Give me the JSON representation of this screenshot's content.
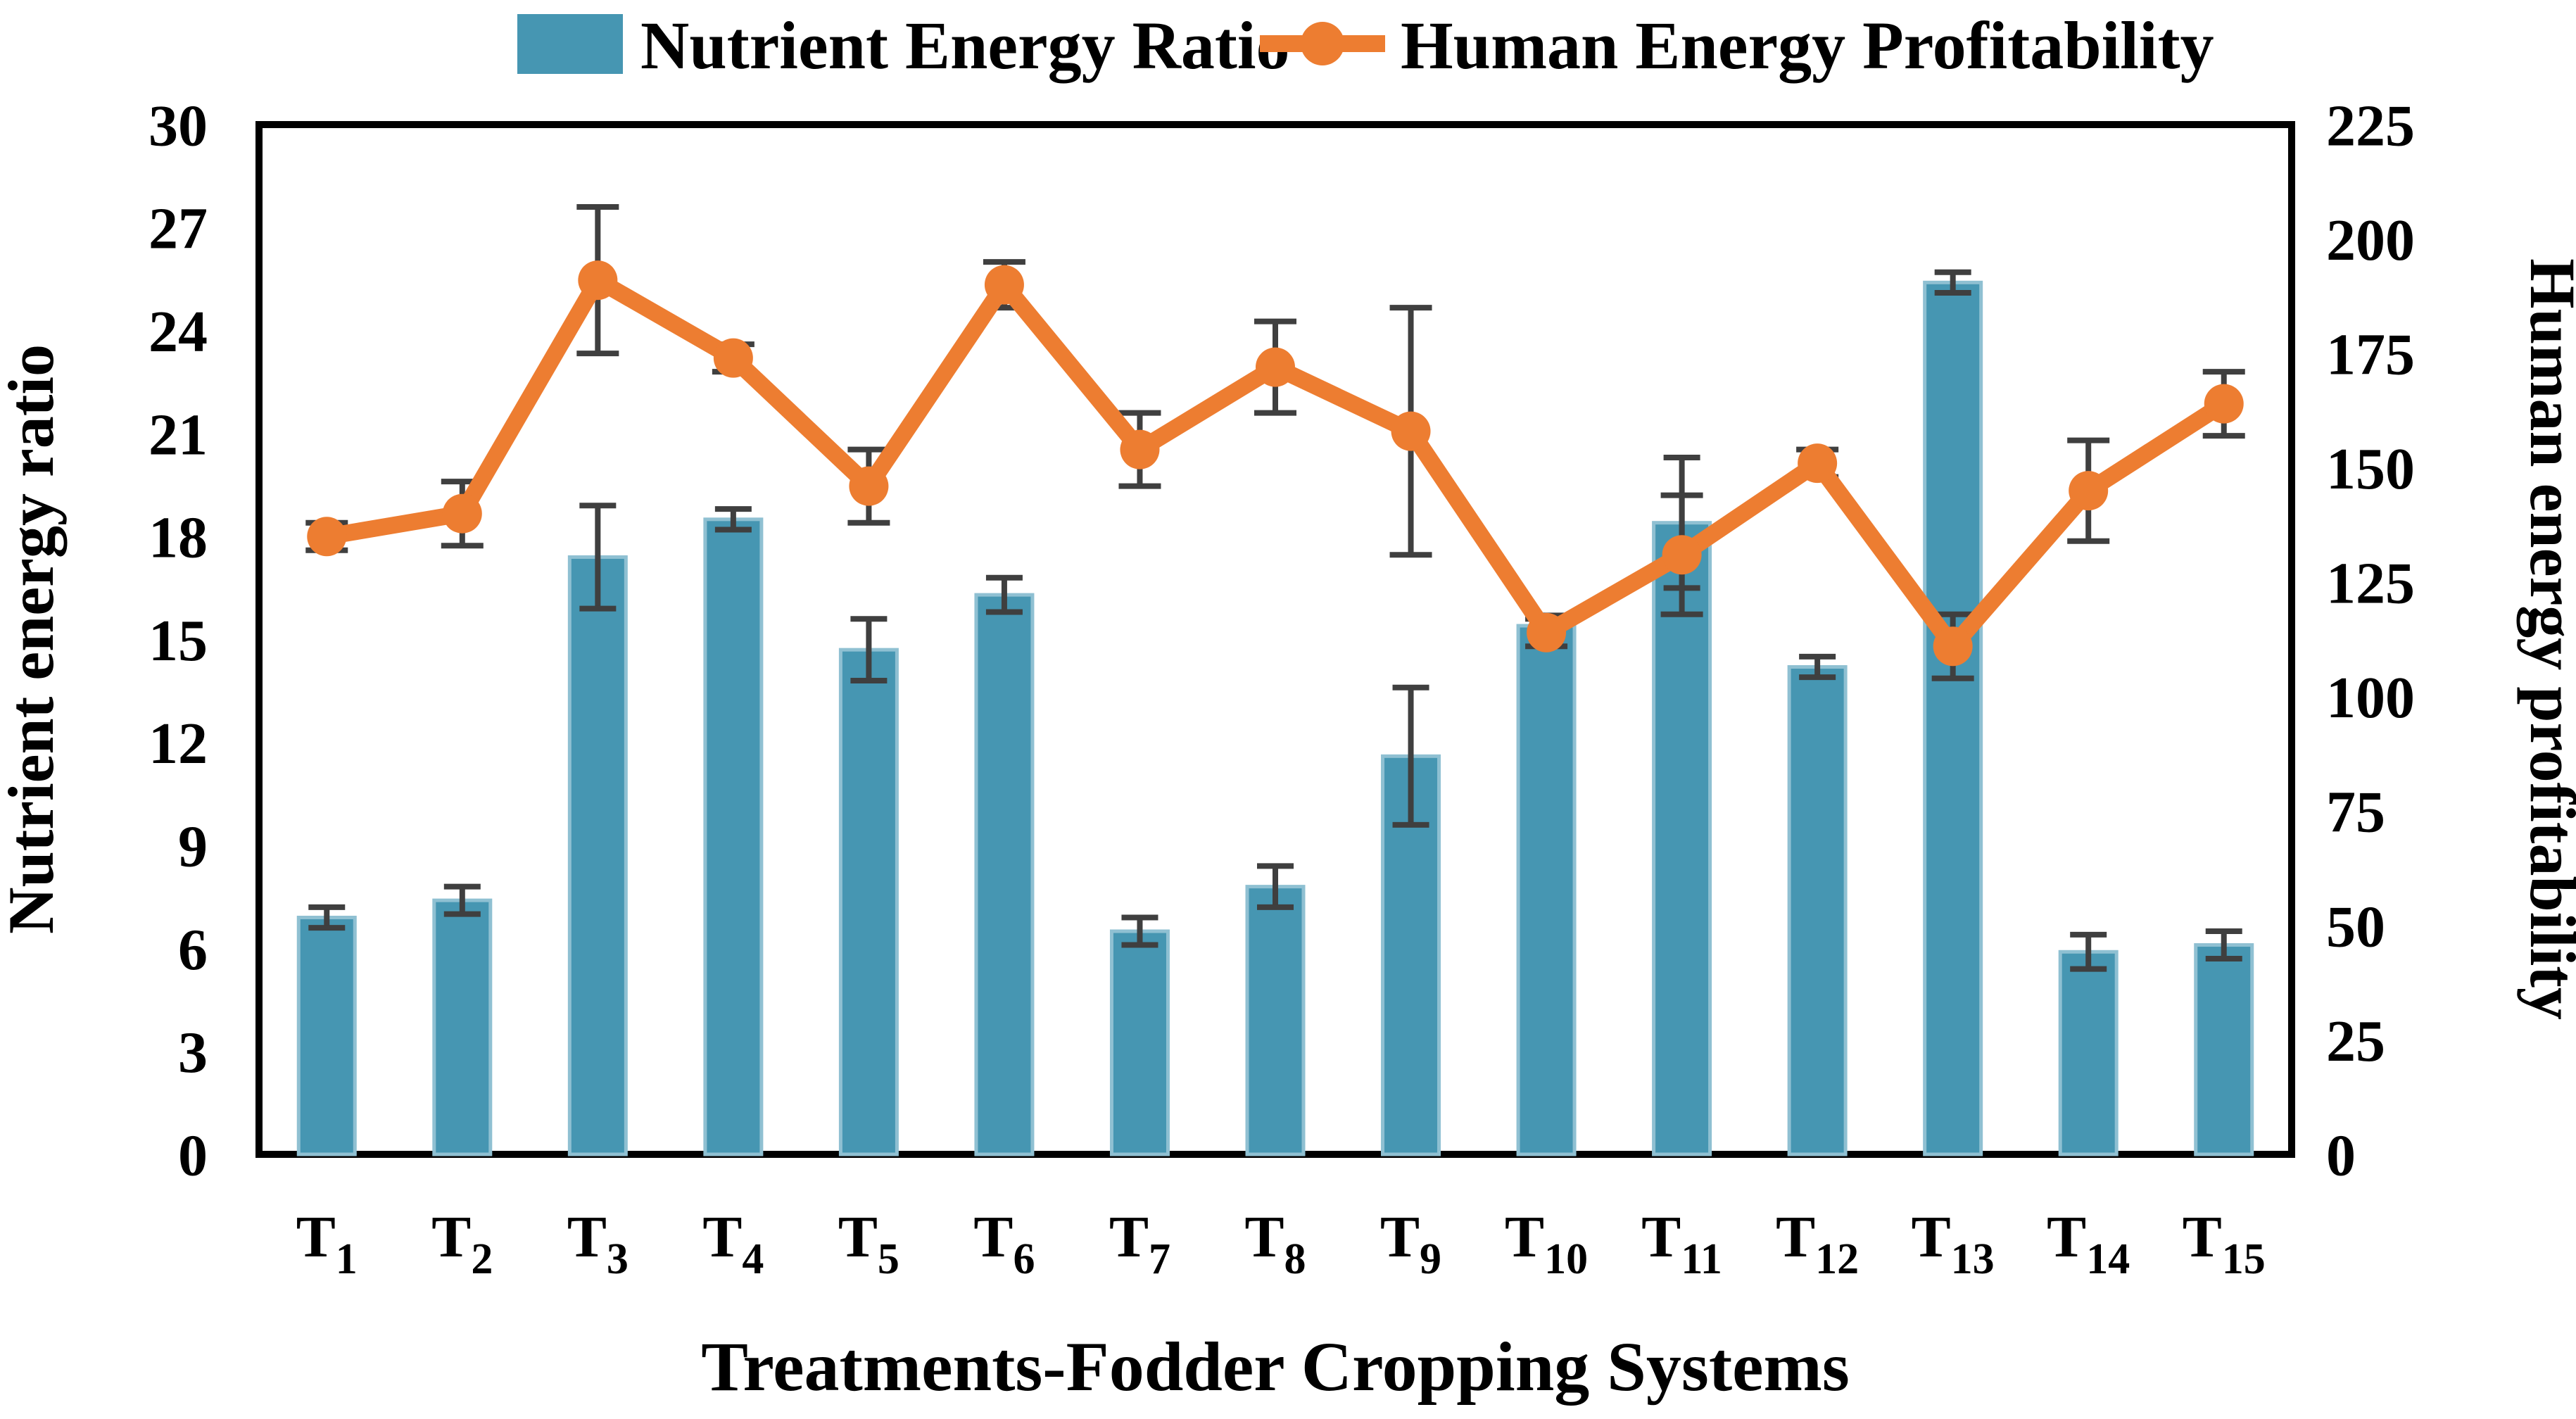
{
  "chart_data": {
    "type": "bar+line",
    "categories": [
      "T1",
      "T2",
      "T3",
      "T4",
      "T5",
      "T6",
      "T7",
      "T8",
      "T9",
      "T10",
      "T11",
      "T12",
      "T13",
      "T14",
      "T15"
    ],
    "series": [
      {
        "name": "Nutrient Energy Ratio",
        "type": "bar",
        "axis": "left",
        "color": "#4696B2",
        "edge_color": "#8FC0D2",
        "values": [
          6.9,
          7.4,
          17.4,
          18.5,
          14.7,
          16.3,
          6.5,
          7.8,
          11.6,
          15.4,
          18.4,
          14.2,
          25.4,
          5.9,
          6.1
        ],
        "errors": [
          0.3,
          0.4,
          1.5,
          0.3,
          0.9,
          0.5,
          0.4,
          0.6,
          2.0,
          0.3,
          1.9,
          0.3,
          0.3,
          0.5,
          0.4
        ]
      },
      {
        "name": "Human Energy Profitability",
        "type": "line",
        "axis": "right",
        "color": "#ED7D31",
        "values": [
          135,
          140,
          191,
          174,
          146,
          190,
          154,
          172,
          158,
          114,
          131,
          151,
          111,
          145,
          164
        ],
        "errors": [
          3,
          7,
          16,
          3,
          8,
          5,
          8,
          10,
          27,
          3,
          13,
          3,
          7,
          11,
          7
        ]
      }
    ],
    "axes": {
      "left": {
        "label": "Nutrient energy ratio",
        "min": 0,
        "max": 30,
        "tick_labels": [
          "0",
          "3",
          "6",
          "9",
          "12",
          "15",
          "18",
          "21",
          "24",
          "27",
          "30"
        ]
      },
      "right": {
        "label": "Human energy profitability",
        "min": 0,
        "max": 225,
        "tick_labels": [
          "0",
          "25",
          "50",
          "75",
          "100",
          "125",
          "150",
          "175",
          "200",
          "225"
        ]
      },
      "x": {
        "label": "Treatments-Fodder Cropping Systems"
      }
    },
    "legend_position": "top",
    "error_bar_color": "#3F3F3F",
    "plot_border_color": "#000000",
    "grid": false
  }
}
